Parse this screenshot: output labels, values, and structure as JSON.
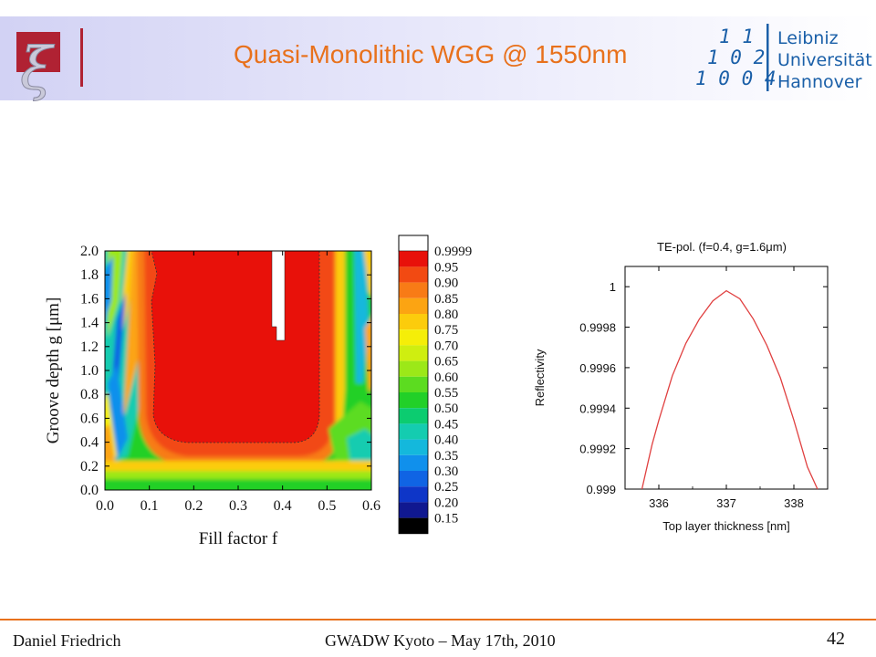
{
  "slide": {
    "title": "Quasi-Monolithic WGG @ 1550nm",
    "author": "Daniel Friedrich",
    "conference": "GWADW Kyoto – May 17th, 2010",
    "page_number": "42"
  },
  "logos": {
    "left": "institute-logo",
    "right_text": [
      "Leibniz",
      "Universität",
      "Hannover"
    ],
    "right_digits": [
      [
        "1",
        "1"
      ],
      [
        "1",
        "0",
        "2"
      ],
      [
        "1",
        "0",
        "0",
        "4"
      ]
    ]
  },
  "colors": {
    "title": "#e8711c",
    "header_gradient_start": "#d2d2f4",
    "footer_line": "#e8711c",
    "reflectivity_curve": "#e04040",
    "logo_red": "#b02233",
    "logo_blue": "#1a5fa8"
  },
  "chart_data": [
    {
      "type": "heatmap",
      "xlabel": "Fill factor f",
      "ylabel": "Groove depth g [μm]",
      "xlim": [
        0.0,
        0.6
      ],
      "ylim": [
        0.0,
        2.0
      ],
      "x_ticks": [
        "0.0",
        "0.1",
        "0.2",
        "0.3",
        "0.4",
        "0.5",
        "0.6"
      ],
      "y_ticks": [
        "0.0",
        "0.2",
        "0.4",
        "0.6",
        "0.8",
        "1.0",
        "1.2",
        "1.4",
        "1.6",
        "1.8",
        "2.0"
      ],
      "colorbar": {
        "levels": [
          "0.9999",
          "0.95",
          "0.90",
          "0.85",
          "0.80",
          "0.75",
          "0.70",
          "0.65",
          "0.60",
          "0.55",
          "0.50",
          "0.45",
          "0.40",
          "0.35",
          "0.30",
          "0.25",
          "0.20",
          "0.15"
        ],
        "colors": [
          "#ffffff",
          "#e8110a",
          "#f24a12",
          "#f87b16",
          "#fca412",
          "#fccc0c",
          "#f5ee08",
          "#cfee10",
          "#9ce818",
          "#5cdc20",
          "#22d028",
          "#0ccc70",
          "#14ccb0",
          "#14b8dc",
          "#1090ec",
          "#1064e4",
          "#0e36c8",
          "#101890",
          "#000000"
        ]
      },
      "high_reflectivity_region": {
        "fill_factor": [
          0.37,
          0.4
        ],
        "groove_depth": [
          1.25,
          2.0
        ],
        "reflectivity": ">0.9999"
      },
      "contour_095": {
        "fill_factor": [
          0.13,
          0.49
        ],
        "groove_depth": [
          0.4,
          2.0
        ]
      }
    },
    {
      "type": "line",
      "title": "TE-pol. (f=0.4, g=1.6μm)",
      "xlabel": "Top layer thickness [nm]",
      "ylabel": "Reflectivity",
      "xlim": [
        335.5,
        338.5
      ],
      "ylim": [
        0.999,
        1.0001
      ],
      "x_ticks": [
        "336",
        "337",
        "338"
      ],
      "y_ticks": [
        "0.999",
        "0.9992",
        "0.9994",
        "0.9996",
        "0.9998",
        "1"
      ],
      "series": [
        {
          "x": [
            335.75,
            335.9,
            336.0,
            336.2,
            336.4,
            336.6,
            336.8,
            337.0,
            337.2,
            337.4,
            337.6,
            337.8,
            338.0,
            338.2,
            338.35
          ],
          "values": [
            0.999,
            0.99922,
            0.99934,
            0.99956,
            0.99972,
            0.99984,
            0.99993,
            0.99998,
            0.99994,
            0.99984,
            0.99971,
            0.99955,
            0.99934,
            0.99911,
            0.999
          ]
        }
      ]
    }
  ]
}
